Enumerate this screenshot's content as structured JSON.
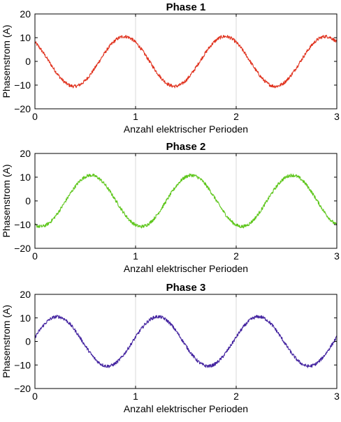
{
  "chart_data": [
    {
      "type": "line",
      "title": "Phase 1",
      "xlabel": "Anzahl elektrischer Perioden",
      "ylabel": "Phasenstrom (A)",
      "xlim": [
        0,
        3
      ],
      "ylim": [
        -20,
        20
      ],
      "x_ticks": [
        0,
        1,
        2,
        3
      ],
      "y_ticks": [
        20,
        10,
        0,
        -10,
        -20
      ],
      "grid": "vertical at x ticks",
      "series": [
        {
          "color": "#e0321e",
          "amplitude": 10.5,
          "period": 1,
          "phase_deg": 130,
          "x": [
            0,
            0.125,
            0.25,
            0.375,
            0.5,
            0.625,
            0.75,
            0.875,
            1,
            1.125,
            1.25,
            1.375,
            1.5,
            1.625,
            1.75,
            1.875,
            2,
            2.125,
            2.25,
            2.375,
            2.5,
            2.625,
            2.75,
            2.875,
            3
          ],
          "values": [
            8.0,
            0.3,
            -7.6,
            -10.4,
            -8.0,
            -0.3,
            7.6,
            10.4,
            8.0,
            0.3,
            -7.6,
            -10.4,
            -8.0,
            -0.3,
            7.6,
            10.4,
            8.0,
            0.3,
            -7.6,
            -10.4,
            -8.0,
            -0.3,
            7.6,
            10.4,
            8.0
          ]
        }
      ]
    },
    {
      "type": "line",
      "title": "Phase 2",
      "xlabel": "Anzahl elektrischer Perioden",
      "ylabel": "Phasenstrom (A)",
      "xlim": [
        0,
        3
      ],
      "ylim": [
        -20,
        20
      ],
      "x_ticks": [
        0,
        1,
        2,
        3
      ],
      "y_ticks": [
        20,
        10,
        0,
        -10,
        -20
      ],
      "grid": "vertical at x ticks",
      "series": [
        {
          "color": "#5ec61c",
          "amplitude": 10.8,
          "period": 1,
          "phase_deg": -110,
          "x": [
            0,
            0.125,
            0.25,
            0.375,
            0.5,
            0.625,
            0.75,
            0.875,
            1,
            1.125,
            1.25,
            1.375,
            1.5,
            1.625,
            1.75,
            1.875,
            2,
            2.125,
            2.25,
            2.375,
            2.5,
            2.625,
            2.75,
            2.875,
            3
          ],
          "values": [
            -10.1,
            -9.6,
            -1.9,
            6.9,
            10.1,
            9.6,
            1.9,
            -6.9,
            -10.1,
            -9.6,
            -1.9,
            6.9,
            10.1,
            9.6,
            1.9,
            -6.9,
            -10.1,
            -9.6,
            -1.9,
            6.9,
            10.1,
            9.6,
            1.9,
            -6.9,
            -10.1
          ]
        }
      ]
    },
    {
      "type": "line",
      "title": "Phase 3",
      "xlabel": "Anzahl elektrischer Perioden",
      "ylabel": "Phasenstrom (A)",
      "xlim": [
        0,
        3
      ],
      "ylim": [
        -20,
        20
      ],
      "x_ticks": [
        0,
        1,
        2,
        3
      ],
      "y_ticks": [
        20,
        10,
        0,
        -10,
        -20
      ],
      "grid": "vertical at x ticks",
      "series": [
        {
          "color": "#4424a0",
          "amplitude": 10.5,
          "period": 1,
          "phase_deg": 10,
          "x": [
            0,
            0.125,
            0.25,
            0.375,
            0.5,
            0.625,
            0.75,
            0.875,
            1,
            1.125,
            1.25,
            1.375,
            1.5,
            1.625,
            1.75,
            1.875,
            2,
            2.125,
            2.25,
            2.375,
            2.5,
            2.625,
            2.75,
            2.875,
            3
          ],
          "values": [
            1.8,
            8.7,
            10.3,
            6.1,
            -1.8,
            -8.7,
            -10.3,
            -6.1,
            1.8,
            8.7,
            10.3,
            6.1,
            -1.8,
            -8.7,
            -10.3,
            -6.1,
            1.8,
            8.7,
            10.3,
            6.1,
            -1.8,
            -8.7,
            -10.3,
            -6.1,
            1.8
          ]
        }
      ]
    }
  ]
}
